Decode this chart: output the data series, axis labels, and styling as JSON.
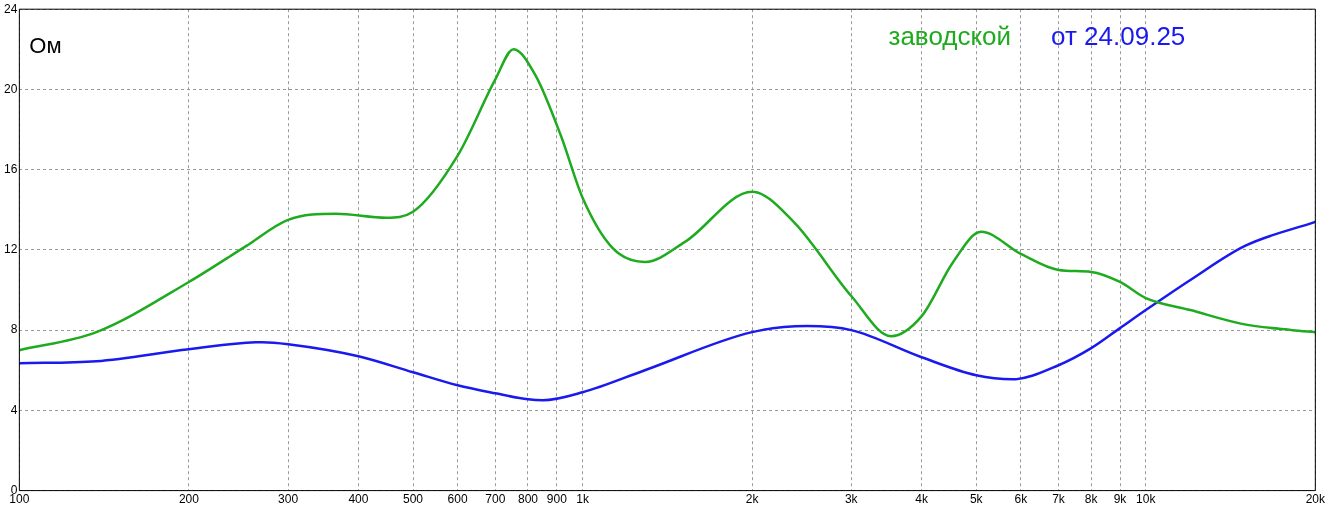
{
  "chart_data": {
    "type": "line",
    "ylabel": "Ом",
    "log": "x",
    "grid": true,
    "legend": "top right",
    "marker": "none",
    "line_style": "solid",
    "xlim": [
      100,
      20000
    ],
    "ylim": [
      0,
      24
    ],
    "yticks": [
      0,
      4,
      8,
      12,
      16,
      20,
      24
    ],
    "xticks": [
      100,
      200,
      300,
      400,
      500,
      600,
      700,
      800,
      900,
      {
        "value": 1000,
        "label": "1k"
      },
      {
        "value": 2000,
        "label": "2k"
      },
      {
        "value": 3000,
        "label": "3k"
      },
      {
        "value": 4000,
        "label": "4k"
      },
      {
        "value": 5000,
        "label": "5k"
      },
      {
        "value": 6000,
        "label": "6k"
      },
      {
        "value": 7000,
        "label": "7k"
      },
      {
        "value": 8000,
        "label": "8k"
      },
      {
        "value": 9000,
        "label": "9k"
      },
      {
        "value": 10000,
        "label": "10k"
      },
      {
        "value": 20000,
        "label": "20k"
      }
    ],
    "series": [
      {
        "name": "заводской",
        "color": "#1fab1f",
        "x": [
          100,
          137,
          200,
          253,
          300,
          365,
          448,
          500,
          600,
          700,
          754,
          825,
          915,
          1000,
          1130,
          1290,
          1520,
          2000,
          2370,
          3000,
          3530,
          4000,
          4550,
          5100,
          6000,
          7000,
          8000,
          9000,
          10000,
          12000,
          14900,
          18200,
          20000
        ],
        "values": [
          7.0,
          7.9,
          10.4,
          12.2,
          13.5,
          13.8,
          13.6,
          13.9,
          16.7,
          20.5,
          22.0,
          20.7,
          17.7,
          14.6,
          12.1,
          11.4,
          12.4,
          14.9,
          13.4,
          9.7,
          7.7,
          8.7,
          11.4,
          12.9,
          11.8,
          11.0,
          10.9,
          10.4,
          9.6,
          9.0,
          8.3,
          8.0,
          7.9
        ]
      },
      {
        "name": "от 24.09.25",
        "color": "#1a1aee",
        "x": [
          100,
          137,
          200,
          270,
          300,
          400,
          500,
          600,
          700,
          800,
          850,
          1000,
          1290,
          2000,
          2500,
          3000,
          4000,
          5000,
          5800,
          7000,
          8000,
          9000,
          10000,
          12000,
          15000,
          20000
        ],
        "values": [
          6.35,
          6.45,
          7.05,
          7.4,
          7.3,
          6.7,
          5.9,
          5.25,
          4.85,
          4.55,
          4.5,
          4.9,
          6.0,
          7.9,
          8.2,
          8.0,
          6.65,
          5.75,
          5.55,
          6.25,
          7.1,
          8.1,
          9.0,
          10.5,
          12.2,
          13.4
        ]
      }
    ]
  }
}
